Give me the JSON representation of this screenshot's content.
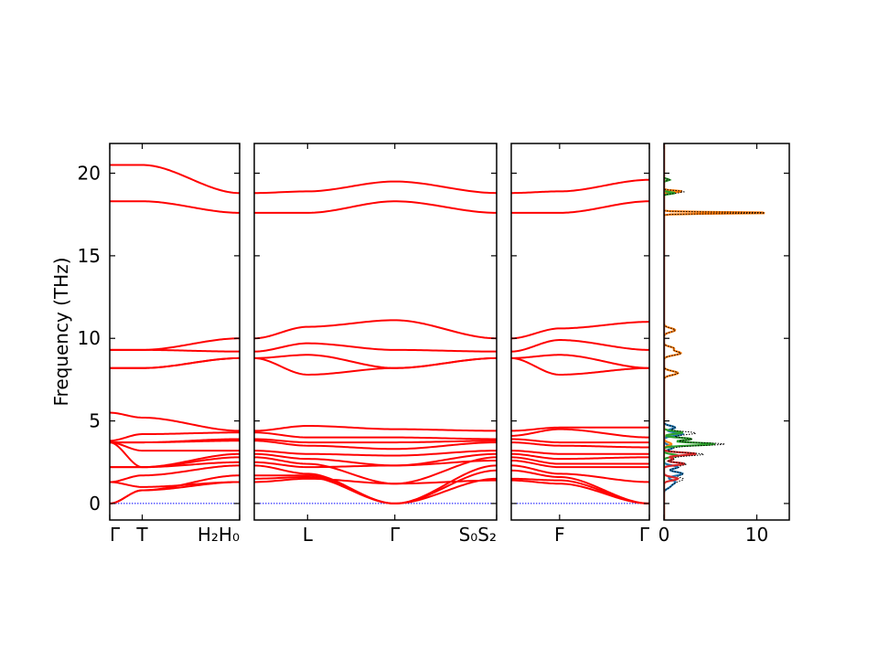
{
  "chart_data": {
    "type": "line",
    "title": "",
    "ylabel": "Frequency (THz)",
    "ylim": [
      -1.0,
      21.8
    ],
    "y_ticks": [
      0,
      5,
      10,
      15,
      20
    ],
    "zero_line_color": "#0000ff",
    "band_color": "#ff0000",
    "panels": [
      {
        "kind": "band",
        "x_ticks": [
          {
            "pos": 0.0,
            "label": "Γ"
          },
          {
            "pos": 0.25,
            "label": "T"
          },
          {
            "pos": 1.0,
            "label": "H₂H₀"
          }
        ],
        "anchors": [
          0.0,
          0.25,
          1.0
        ],
        "branches": [
          [
            20.5,
            20.5,
            18.8
          ],
          [
            18.3,
            18.3,
            17.6
          ],
          [
            9.3,
            9.3,
            10.0
          ],
          [
            9.3,
            9.3,
            9.2
          ],
          [
            8.2,
            8.2,
            8.8
          ],
          [
            8.2,
            8.2,
            8.8
          ],
          [
            5.5,
            5.2,
            4.4
          ],
          [
            3.8,
            4.2,
            4.3
          ],
          [
            3.7,
            3.7,
            3.9
          ],
          [
            3.7,
            3.7,
            3.8
          ],
          [
            3.7,
            3.2,
            3.2
          ],
          [
            3.7,
            2.2,
            3.0
          ],
          [
            2.2,
            2.2,
            2.8
          ],
          [
            2.2,
            2.2,
            2.5
          ],
          [
            1.3,
            1.7,
            2.3
          ],
          [
            1.3,
            1.0,
            1.3
          ],
          [
            0.0,
            0.8,
            1.7
          ],
          [
            0.0,
            0.8,
            1.3
          ]
        ]
      },
      {
        "kind": "band",
        "x_ticks": [
          {
            "pos": 0.22,
            "label": "L"
          },
          {
            "pos": 0.58,
            "label": "Γ"
          },
          {
            "pos": 1.0,
            "label": "S₀S₂"
          }
        ],
        "anchors": [
          0.0,
          0.22,
          0.58,
          1.0
        ],
        "branches": [
          [
            18.8,
            18.9,
            19.5,
            18.8
          ],
          [
            17.6,
            17.6,
            18.3,
            17.6
          ],
          [
            10.0,
            10.7,
            11.1,
            10.0
          ],
          [
            9.2,
            9.7,
            9.3,
            9.2
          ],
          [
            8.8,
            9.0,
            8.2,
            8.8
          ],
          [
            8.8,
            7.8,
            8.2,
            8.8
          ],
          [
            4.4,
            4.7,
            4.5,
            4.4
          ],
          [
            4.3,
            4.0,
            4.0,
            3.9
          ],
          [
            3.9,
            3.7,
            3.7,
            3.8
          ],
          [
            3.8,
            3.5,
            3.3,
            3.7
          ],
          [
            3.2,
            3.0,
            2.9,
            3.2
          ],
          [
            3.0,
            2.7,
            2.3,
            3.0
          ],
          [
            2.8,
            2.4,
            1.2,
            2.8
          ],
          [
            2.5,
            2.2,
            2.3,
            2.6
          ],
          [
            2.3,
            1.8,
            0.0,
            2.3
          ],
          [
            1.7,
            1.7,
            0.0,
            2.0
          ],
          [
            1.5,
            1.6,
            0.0,
            1.5
          ],
          [
            1.3,
            1.5,
            1.2,
            1.4
          ]
        ]
      },
      {
        "kind": "band",
        "x_ticks": [
          {
            "pos": 0.35,
            "label": "F"
          },
          {
            "pos": 1.0,
            "label": "Γ"
          }
        ],
        "anchors": [
          0.0,
          0.35,
          1.0
        ],
        "branches": [
          [
            18.8,
            18.9,
            19.6
          ],
          [
            17.6,
            17.6,
            18.3
          ],
          [
            10.0,
            10.6,
            11.0
          ],
          [
            9.2,
            9.9,
            9.3
          ],
          [
            8.8,
            9.0,
            8.2
          ],
          [
            8.8,
            7.8,
            8.2
          ],
          [
            4.4,
            4.6,
            4.6
          ],
          [
            4.1,
            4.5,
            4.0
          ],
          [
            3.9,
            3.7,
            3.7
          ],
          [
            3.7,
            3.5,
            3.4
          ],
          [
            3.2,
            3.0,
            3.0
          ],
          [
            3.0,
            2.7,
            2.8
          ],
          [
            2.8,
            2.4,
            2.4
          ],
          [
            2.6,
            2.2,
            2.2
          ],
          [
            2.3,
            1.8,
            1.3
          ],
          [
            2.0,
            1.6,
            0.0
          ],
          [
            1.5,
            1.4,
            0.0
          ],
          [
            1.4,
            1.2,
            0.0
          ]
        ]
      },
      {
        "kind": "dos",
        "xlim": [
          0,
          13.5
        ],
        "x_ticks": [
          {
            "pos": 0,
            "label": "0"
          },
          {
            "pos": 10,
            "label": "10"
          }
        ],
        "total_color": "#000000",
        "series": [
          {
            "color": "#1f77b4",
            "peaks": [
              [
                1.0,
                0.5,
                0.12
              ],
              [
                1.3,
                1.2,
                0.15
              ],
              [
                1.8,
                2.0,
                0.12
              ],
              [
                2.2,
                1.5,
                0.1
              ],
              [
                3.4,
                1.0,
                0.12
              ],
              [
                4.2,
                2.0,
                0.1
              ],
              [
                4.6,
                1.2,
                0.1
              ]
            ]
          },
          {
            "color": "#ff7f0e",
            "peaks": [
              [
                7.9,
                1.5,
                0.12
              ],
              [
                9.1,
                1.8,
                0.12
              ],
              [
                9.4,
                1.0,
                0.1
              ],
              [
                10.5,
                1.2,
                0.12
              ],
              [
                17.6,
                12.0,
                0.04
              ],
              [
                18.9,
                2.0,
                0.05
              ],
              [
                3.6,
                0.8,
                0.1
              ]
            ]
          },
          {
            "color": "#2ca02c",
            "peaks": [
              [
                3.6,
                5.5,
                0.08
              ],
              [
                3.9,
                3.0,
                0.08
              ],
              [
                4.3,
                2.0,
                0.08
              ],
              [
                2.9,
                1.5,
                0.08
              ],
              [
                18.8,
                1.2,
                0.05
              ],
              [
                19.6,
                0.6,
                0.05
              ]
            ]
          },
          {
            "color": "#d62728",
            "peaks": [
              [
                2.4,
                2.2,
                0.08
              ],
              [
                3.0,
                3.5,
                0.08
              ],
              [
                1.5,
                1.5,
                0.1
              ],
              [
                2.7,
                1.0,
                0.08
              ]
            ]
          }
        ]
      }
    ]
  }
}
